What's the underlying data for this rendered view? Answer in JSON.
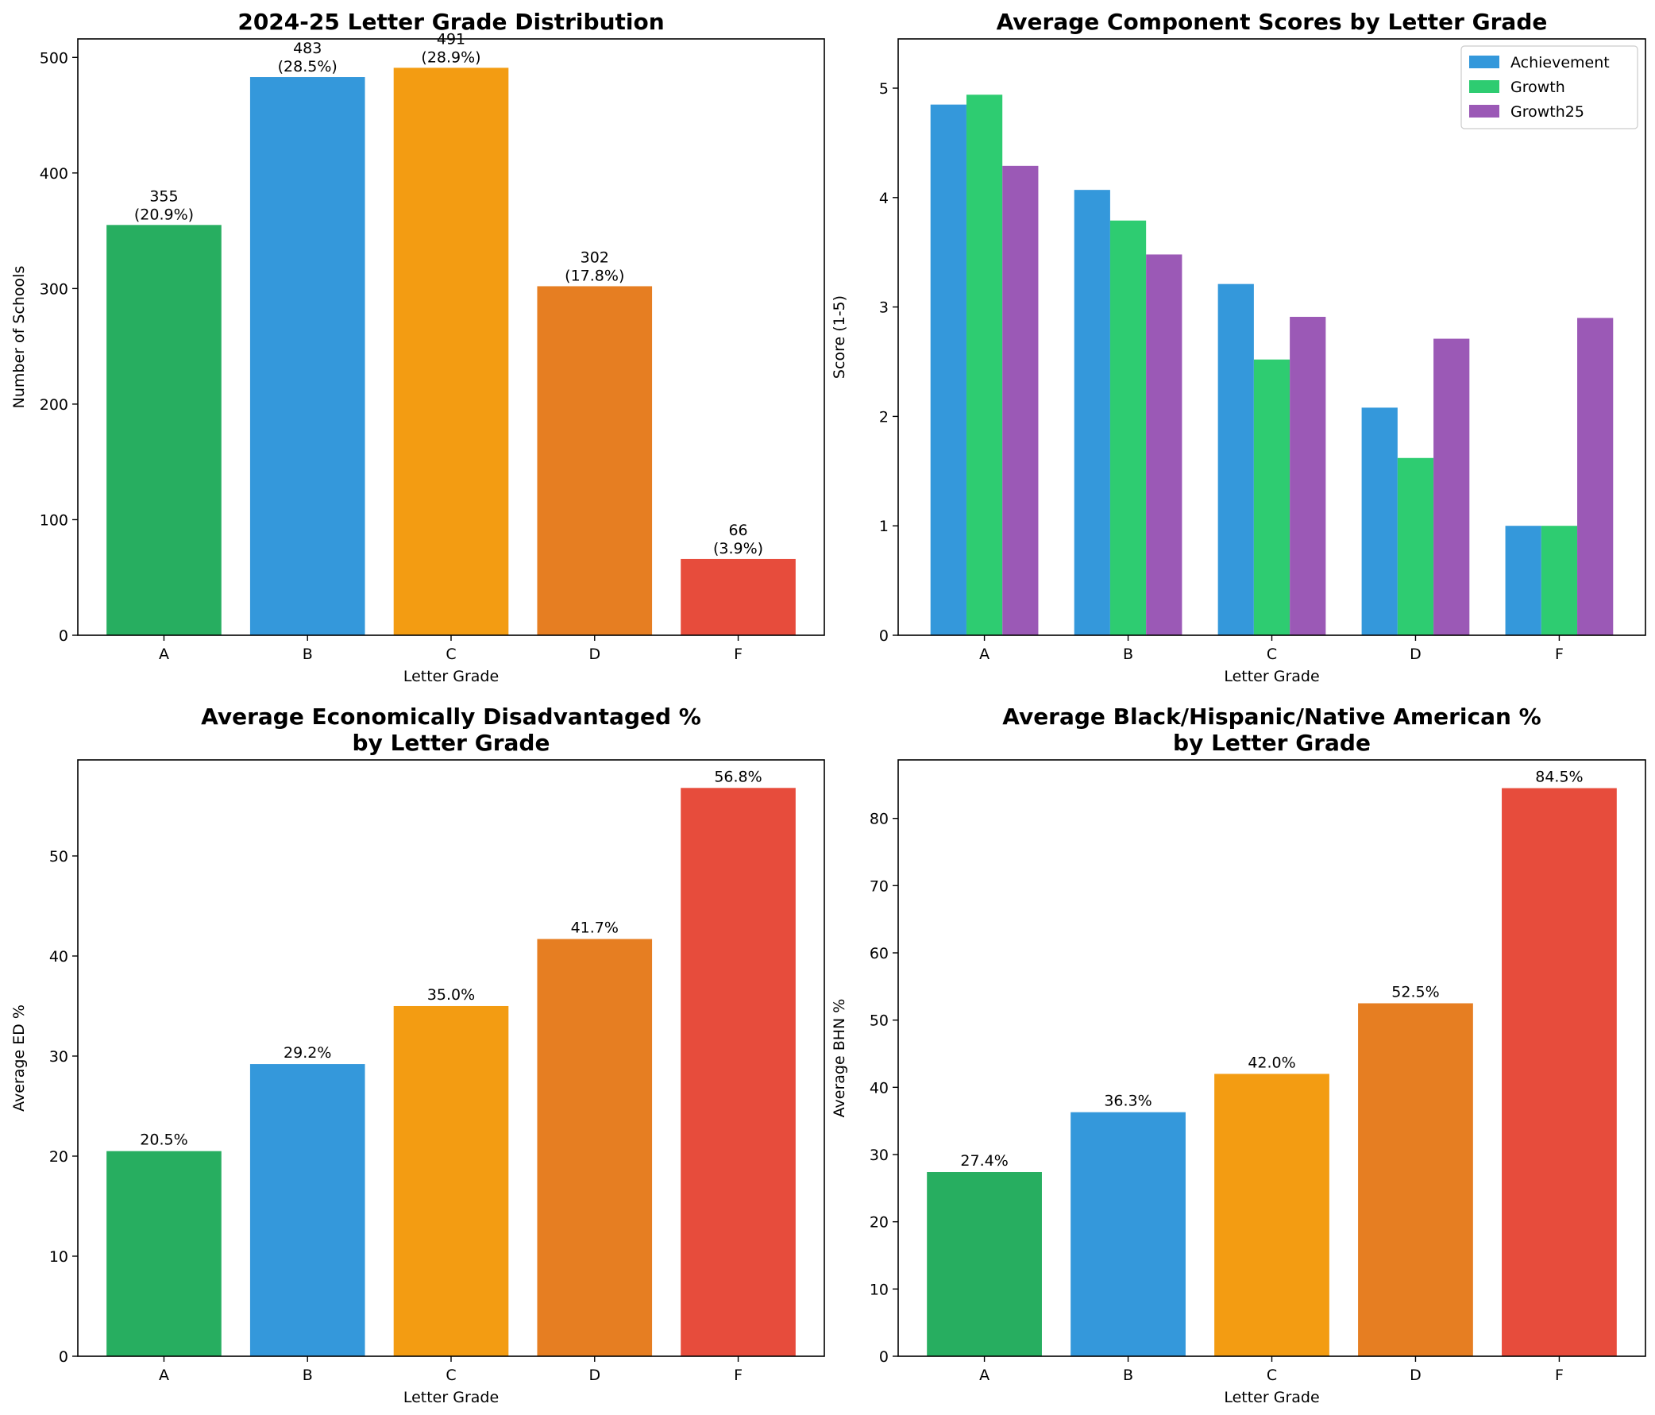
{
  "chart_data": [
    {
      "type": "bar",
      "title": [
        "2024-25 Letter Grade Distribution"
      ],
      "xlabel": "Letter Grade",
      "ylabel": "Number of Schools",
      "categories": [
        "A",
        "B",
        "C",
        "D",
        "F"
      ],
      "values": [
        355,
        483,
        491,
        302,
        66
      ],
      "value_labels": [
        "355",
        "483",
        "491",
        "302",
        "66"
      ],
      "percent_labels": [
        "(20.9%)",
        "(28.5%)",
        "(28.9%)",
        "(17.8%)",
        "(3.9%)"
      ],
      "colors": [
        "#27ae60",
        "#3498db",
        "#f39c12",
        "#e67e22",
        "#e74c3c"
      ],
      "ylim": [
        0,
        516
      ],
      "yticks": [
        0,
        100,
        200,
        300,
        400,
        500
      ]
    },
    {
      "type": "bar",
      "title": [
        "Average Component Scores by Letter Grade"
      ],
      "xlabel": "Letter Grade",
      "ylabel": "Score (1-5)",
      "categories": [
        "A",
        "B",
        "C",
        "D",
        "F"
      ],
      "series": [
        {
          "name": "Achievement",
          "color": "#3498db",
          "values": [
            4.85,
            4.07,
            3.21,
            2.08,
            1.0
          ]
        },
        {
          "name": "Growth",
          "color": "#2ecc71",
          "values": [
            4.94,
            3.79,
            2.52,
            1.62,
            1.0
          ]
        },
        {
          "name": "Growth25",
          "color": "#9b59b6",
          "values": [
            4.29,
            3.48,
            2.91,
            2.71,
            2.9
          ]
        }
      ],
      "legend_position": "top-right",
      "ylim": [
        0,
        5.45
      ],
      "yticks": [
        0,
        1,
        2,
        3,
        4,
        5
      ]
    },
    {
      "type": "bar",
      "title": [
        "Average Economically Disadvantaged %",
        "by Letter Grade"
      ],
      "xlabel": "Letter Grade",
      "ylabel": "Average ED %",
      "categories": [
        "A",
        "B",
        "C",
        "D",
        "F"
      ],
      "values": [
        20.5,
        29.2,
        35.0,
        41.7,
        56.8
      ],
      "value_labels": [
        "20.5%",
        "29.2%",
        "35.0%",
        "41.7%",
        "56.8%"
      ],
      "colors": [
        "#27ae60",
        "#3498db",
        "#f39c12",
        "#e67e22",
        "#e74c3c"
      ],
      "ylim": [
        0,
        59.6
      ],
      "yticks": [
        0,
        10,
        20,
        30,
        40,
        50
      ]
    },
    {
      "type": "bar",
      "title": [
        "Average Black/Hispanic/Native American %",
        "by Letter Grade"
      ],
      "xlabel": "Letter Grade",
      "ylabel": "Average BHN %",
      "categories": [
        "A",
        "B",
        "C",
        "D",
        "F"
      ],
      "values": [
        27.4,
        36.3,
        42.0,
        52.5,
        84.5
      ],
      "value_labels": [
        "27.4%",
        "36.3%",
        "42.0%",
        "52.5%",
        "84.5%"
      ],
      "colors": [
        "#27ae60",
        "#3498db",
        "#f39c12",
        "#e67e22",
        "#e74c3c"
      ],
      "ylim": [
        0,
        88.7
      ],
      "yticks": [
        0,
        10,
        20,
        30,
        40,
        50,
        60,
        70,
        80
      ]
    }
  ]
}
